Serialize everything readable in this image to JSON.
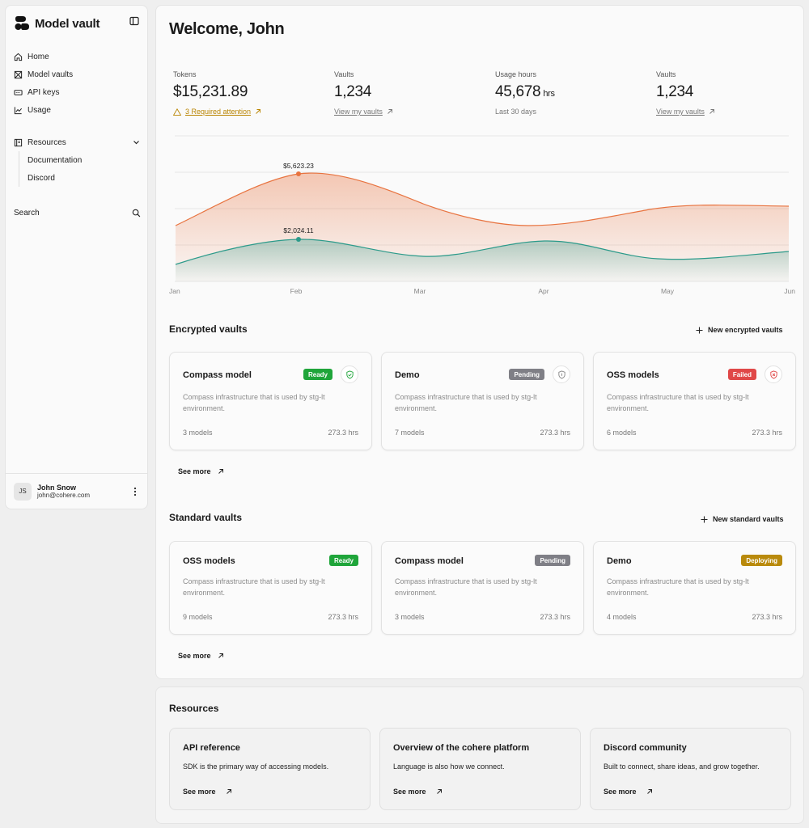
{
  "sidebar": {
    "brand": "Model vault",
    "nav": [
      {
        "label": "Home",
        "icon": "home-icon"
      },
      {
        "label": "Model vaults",
        "icon": "vault-icon"
      },
      {
        "label": "API keys",
        "icon": "key-icon"
      },
      {
        "label": "Usage",
        "icon": "chart-icon"
      }
    ],
    "resources": {
      "label": "Resources",
      "items": [
        "Documentation",
        "Discord"
      ]
    },
    "search_label": "Search",
    "user": {
      "initials": "JS",
      "name": "John Snow",
      "email": "john@cohere.com"
    }
  },
  "main": {
    "welcome": "Welcome, John",
    "stats": [
      {
        "label": "Tokens",
        "value": "$15,231.89",
        "unit": "",
        "link": "3 Required attention",
        "link_type": "warning"
      },
      {
        "label": "Vaults",
        "value": "1,234",
        "unit": "",
        "link": "View my vaults",
        "link_type": "link"
      },
      {
        "label": "Usage hours",
        "value": "45,678",
        "unit": "hrs",
        "link": "Last 30 days",
        "link_type": "text"
      },
      {
        "label": "Vaults",
        "value": "1,234",
        "unit": "",
        "link": "View my vaults",
        "link_type": "link"
      }
    ]
  },
  "chart_data": {
    "type": "area",
    "categories": [
      "Jan",
      "Feb",
      "Mar",
      "Apr",
      "May",
      "Jun"
    ],
    "series": [
      {
        "color": "#e8733f",
        "annotation": {
          "x": "Feb",
          "label": "$5,623.23"
        }
      },
      {
        "color": "#2b9a8a",
        "annotation": {
          "x": "Feb",
          "label": "$2,024.11"
        }
      }
    ],
    "grid": true,
    "legend": "none"
  },
  "encrypted": {
    "title": "Encrypted vaults",
    "new_label": "New encrypted vaults",
    "cards": [
      {
        "title": "Compass model",
        "status": "Ready",
        "status_color": "#1fa53a",
        "shield": "green",
        "desc": "Compass infrastructure that is used by stg-lt environment.",
        "models": "3 models",
        "hours": "273.3 hrs"
      },
      {
        "title": "Demo",
        "status": "Pending",
        "status_color": "#7f7f86",
        "shield": "gray",
        "desc": "Compass infrastructure that is used by stg-lt environment.",
        "models": "7 models",
        "hours": "273.3 hrs"
      },
      {
        "title": "OSS models",
        "status": "Failed",
        "status_color": "#e04848",
        "shield": "red",
        "desc": "Compass infrastructure that is used by stg-lt environment.",
        "models": "6 models",
        "hours": "273.3 hrs"
      }
    ],
    "see_more": "See more"
  },
  "standard": {
    "title": "Standard vaults",
    "new_label": "New standard vaults",
    "cards": [
      {
        "title": "OSS models",
        "status": "Ready",
        "status_color": "#1fa53a",
        "desc": "Compass infrastructure that is used by stg-lt environment.",
        "models": "9 models",
        "hours": "273.3 hrs"
      },
      {
        "title": "Compass model",
        "status": "Pending",
        "status_color": "#7f7f86",
        "desc": "Compass infrastructure that is used by stg-lt environment.",
        "models": "3 models",
        "hours": "273.3 hrs"
      },
      {
        "title": "Demo",
        "status": "Deploying",
        "status_color": "#b98a0c",
        "desc": "Compass infrastructure that is used by stg-lt environment.",
        "models": "4 models",
        "hours": "273.3 hrs"
      }
    ],
    "see_more": "See more"
  },
  "resources": {
    "title": "Resources",
    "cards": [
      {
        "title": "API reference",
        "desc": "SDK is the primary way of accessing models.",
        "more": "See more"
      },
      {
        "title": "Overview of the cohere platform",
        "desc": "Language is also how we connect.",
        "more": "See more"
      },
      {
        "title": "Discord community",
        "desc": "Built to connect, share ideas, and grow together.",
        "more": "See more"
      }
    ]
  }
}
